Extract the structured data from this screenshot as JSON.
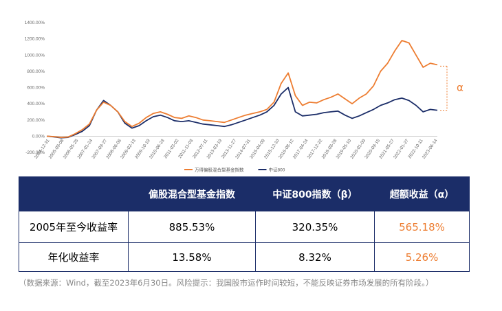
{
  "chart_data": {
    "type": "line",
    "y_ticks": [
      "1400.00%",
      "1200.00%",
      "1000.00%",
      "800.00%",
      "600.00%",
      "400.00%",
      "200.00%",
      "0.00%",
      "-200.00%"
    ],
    "ylim": [
      -200,
      1400
    ],
    "x_ticks": [
      "2004-12-31",
      "2005-09-08",
      "2006-05-25",
      "2007-01-24",
      "2007-09-27",
      "2008-06-06",
      "2009-02-13",
      "2009-10-19",
      "2010-06-23",
      "2011-03-02",
      "2011-11-03",
      "2012-07-11",
      "2013-03-19",
      "2013-11-27",
      "2014-07-31",
      "2015-04-09",
      "2015-12-10",
      "2016-08-12",
      "2017-04-24",
      "2017-12-22",
      "2018-08-28",
      "2019-05-10",
      "2020-01-09",
      "2020-09-15",
      "2021-05-27",
      "2022-01-27",
      "2022-10-11",
      "2023-06-14"
    ],
    "series": [
      {
        "name": "万得偏股混合型基金指数",
        "color": "#ed7d31",
        "values": [
          0,
          -5,
          -15,
          -10,
          30,
          80,
          150,
          320,
          420,
          380,
          300,
          180,
          120,
          160,
          230,
          280,
          300,
          270,
          230,
          220,
          250,
          230,
          200,
          190,
          180,
          170,
          200,
          230,
          260,
          280,
          300,
          330,
          420,
          650,
          780,
          500,
          380,
          420,
          410,
          450,
          480,
          520,
          460,
          400,
          470,
          520,
          620,
          800,
          900,
          1050,
          1180,
          1150,
          1000,
          850,
          900,
          880
        ],
        "annotations": [
          "α"
        ]
      },
      {
        "name": "中证800",
        "color": "#1b2d68",
        "values": [
          0,
          -8,
          -20,
          -15,
          20,
          60,
          130,
          320,
          440,
          380,
          300,
          160,
          100,
          130,
          190,
          240,
          260,
          230,
          190,
          180,
          190,
          170,
          150,
          140,
          130,
          120,
          140,
          170,
          200,
          230,
          260,
          300,
          380,
          520,
          600,
          300,
          250,
          260,
          270,
          290,
          300,
          310,
          260,
          220,
          250,
          290,
          330,
          380,
          410,
          450,
          470,
          440,
          380,
          300,
          330,
          320
        ]
      }
    ],
    "legend_position": "bottom"
  },
  "table": {
    "headers": [
      "",
      "偏股混合型基金指数",
      "中证800指数（β）",
      "超额收益（α）"
    ],
    "rows": [
      {
        "label": "2005年至今收益率",
        "values": [
          "885.53%",
          "320.35%",
          "565.18%"
        ]
      },
      {
        "label": "年化收益率",
        "values": [
          "13.58%",
          "8.32%",
          "5.26%"
        ]
      }
    ]
  },
  "note": "（数据来源：Wind，截至2023年6月30日。风险提示：我国股市运作时间较短，不能反映证券市场发展的所有阶段。）"
}
